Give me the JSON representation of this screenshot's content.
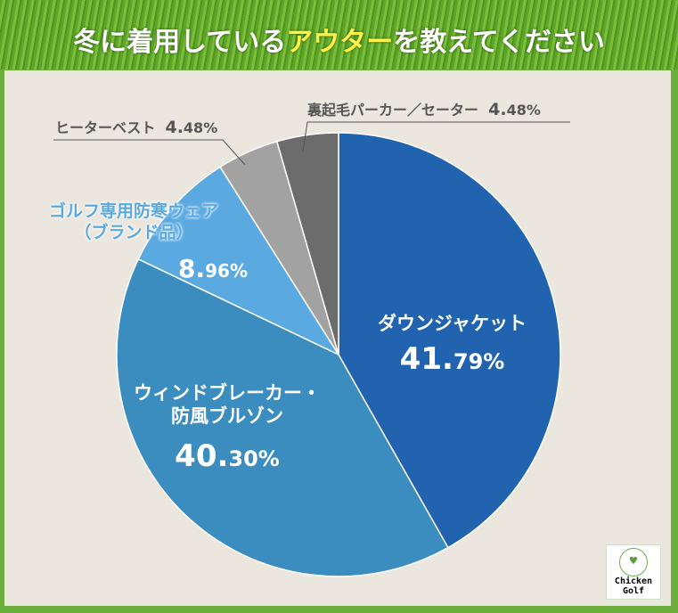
{
  "title": {
    "pre": "冬に着用している",
    "highlight": "アウター",
    "post": "を教えてください"
  },
  "logo": {
    "line1": "Chicken",
    "line2": "Golf"
  },
  "chart_data": {
    "type": "pie",
    "title": "冬に着用しているアウターを教えてください",
    "slices": [
      {
        "label": "ダウンジャケット",
        "value": 41.79,
        "pct_int": "41.",
        "pct_dec": "79%",
        "color": "#2263b0"
      },
      {
        "label": "ウィンドブレーカー・防風ブルゾン",
        "label_lines": [
          "ウィンドブレーカー・",
          "防風ブルゾン"
        ],
        "value": 40.3,
        "pct_int": "40.",
        "pct_dec": "30%",
        "color": "#3b8dbf"
      },
      {
        "label": "ゴルフ専用防寒ウェア（ブランド品）",
        "label_lines": [
          "ゴルフ専用防寒ウェア",
          "（ブランド品）"
        ],
        "value": 8.96,
        "pct_int": "8.",
        "pct_dec": "96%",
        "color": "#5ba9e1"
      },
      {
        "label": "ヒーターベスト",
        "value": 4.48,
        "pct_int": "4.",
        "pct_dec": "48%",
        "color": "#a2a2a2"
      },
      {
        "label": "裏起毛パーカー／セーター",
        "value": 4.48,
        "pct_int": "4.",
        "pct_dec": "48%",
        "color": "#6c6c6c"
      }
    ]
  }
}
